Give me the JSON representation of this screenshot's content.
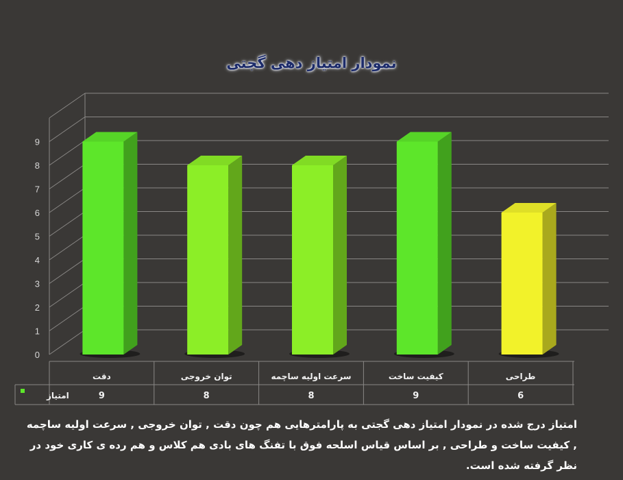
{
  "chart_data": {
    "type": "bar",
    "title": "نمودار امتیاز دهی گجتی",
    "categories": [
      "دقت",
      "توان خروجی",
      "سرعت اولیه ساچمه",
      "کیفیت ساخت",
      "طراحی"
    ],
    "series": [
      {
        "name": "امتیاز",
        "values": [
          9,
          8,
          8,
          9,
          6
        ],
        "colors": [
          "#5de62a",
          "#8cee27",
          "#8cee27",
          "#5de62a",
          "#f2f22a"
        ]
      }
    ],
    "ylim": [
      0,
      9
    ],
    "yticks": [
      0,
      1,
      2,
      3,
      4,
      5,
      6,
      7,
      8,
      9
    ],
    "grid": true,
    "legend_placement": "data-table",
    "data_table": true
  },
  "caption": "امتیاز درج شده در نمودار امتیاز دهی گجتی  به پارامترهایی هم چون دقت , توان خروجی , سرعت اولیه ساچمه , کیفیت ساخت و طراحی , بر اساس قیاس اسلحه فوق با تفنگ های بادی هم کلاس و هم رده ی کاری خود در نظر گرفته شده است.",
  "colors": {
    "background": "#3a3836",
    "gridline": "#8a8886",
    "legend_swatch": "#5de62a"
  }
}
